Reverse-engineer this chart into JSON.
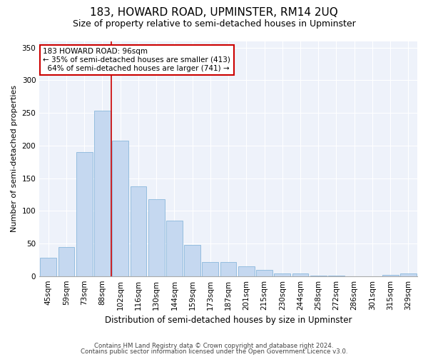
{
  "title": "183, HOWARD ROAD, UPMINSTER, RM14 2UQ",
  "subtitle": "Size of property relative to semi-detached houses in Upminster",
  "xlabel": "Distribution of semi-detached houses by size in Upminster",
  "ylabel": "Number of semi-detached properties",
  "categories": [
    "45sqm",
    "59sqm",
    "73sqm",
    "88sqm",
    "102sqm",
    "116sqm",
    "130sqm",
    "144sqm",
    "159sqm",
    "173sqm",
    "187sqm",
    "201sqm",
    "215sqm",
    "230sqm",
    "244sqm",
    "258sqm",
    "272sqm",
    "286sqm",
    "301sqm",
    "315sqm",
    "329sqm"
  ],
  "values": [
    28,
    45,
    190,
    253,
    207,
    137,
    118,
    85,
    48,
    21,
    21,
    15,
    10,
    4,
    4,
    1,
    1,
    0,
    0,
    2,
    4
  ],
  "bar_color": "#c5d8f0",
  "bar_edge_color": "#7aaed6",
  "property_sqm": 96,
  "smaller_pct": 35,
  "smaller_n": 413,
  "larger_pct": 64,
  "larger_n": 741,
  "vline_color": "#cc0000",
  "annotation_box_color": "#cc0000",
  "ylim": [
    0,
    360
  ],
  "yticks": [
    0,
    50,
    100,
    150,
    200,
    250,
    300,
    350
  ],
  "footer1": "Contains HM Land Registry data © Crown copyright and database right 2024.",
  "footer2": "Contains public sector information licensed under the Open Government Licence v3.0.",
  "bg_color": "#eef2fa",
  "grid_color": "#ffffff",
  "title_fontsize": 11,
  "subtitle_fontsize": 9,
  "tick_fontsize": 7.5,
  "ylabel_fontsize": 8,
  "xlabel_fontsize": 8.5,
  "annot_fontsize": 7.5
}
